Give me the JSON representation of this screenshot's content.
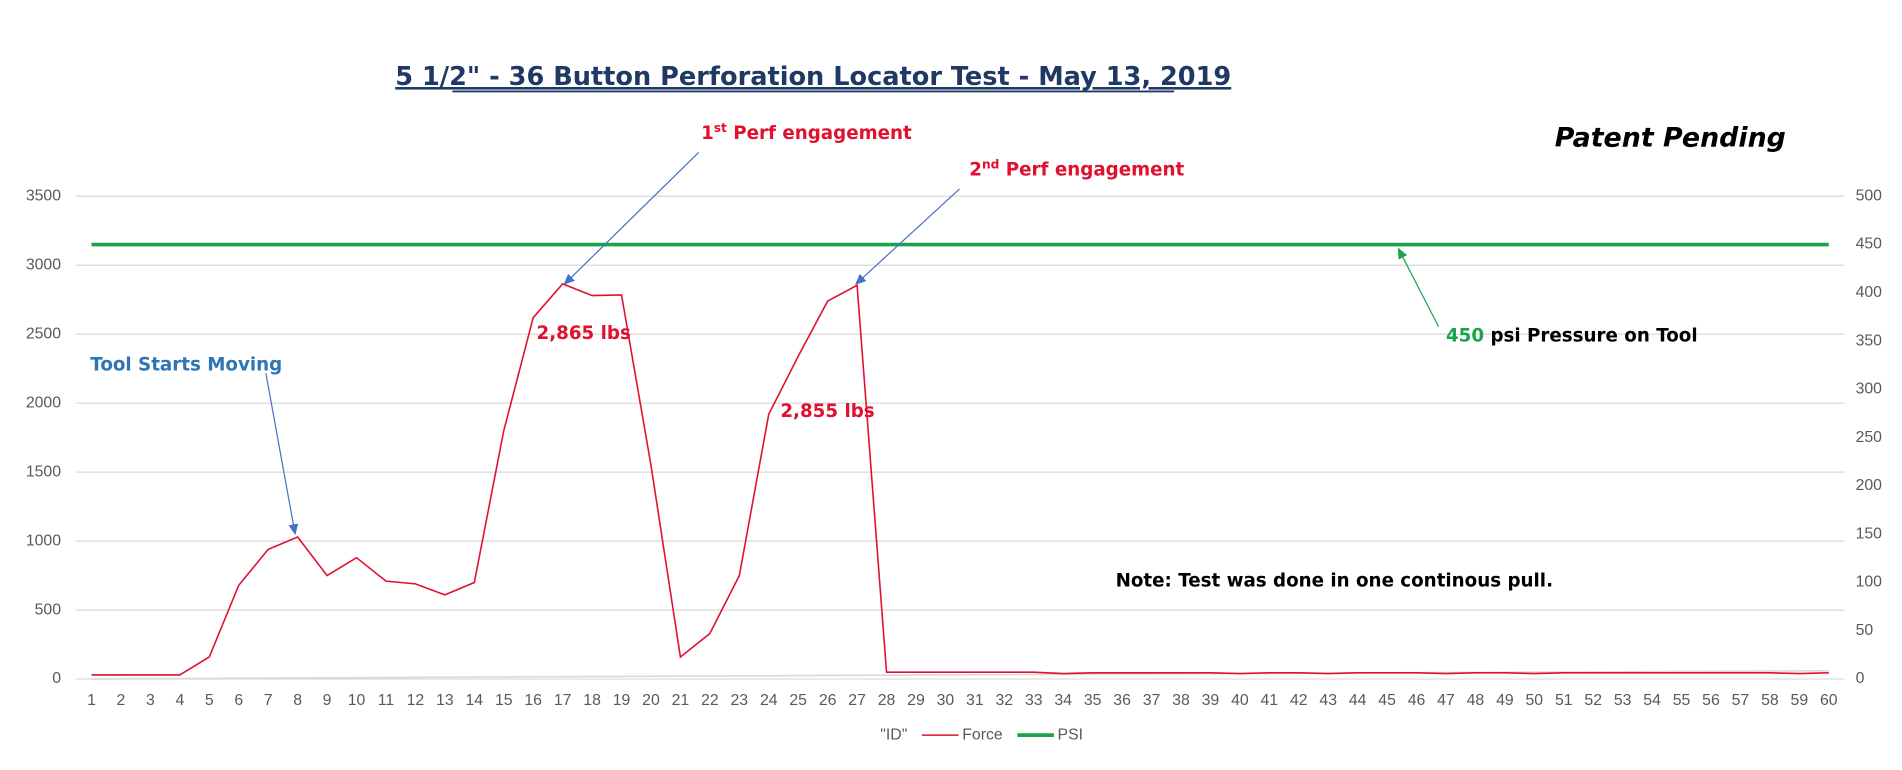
{
  "chart_data": {
    "type": "line",
    "title": "5 1/2\" - 36 Button Perforation Locator Test  - May 13, 2019",
    "subtitle": "Patent Pending",
    "categories": [
      1,
      2,
      3,
      4,
      5,
      6,
      7,
      8,
      9,
      10,
      11,
      12,
      13,
      14,
      15,
      16,
      17,
      18,
      19,
      20,
      21,
      22,
      23,
      24,
      25,
      26,
      27,
      28,
      29,
      30,
      31,
      32,
      33,
      34,
      35,
      36,
      37,
      38,
      39,
      40,
      41,
      42,
      43,
      44,
      45,
      46,
      47,
      48,
      49,
      50,
      51,
      52,
      53,
      54,
      55,
      56,
      57,
      58,
      59,
      60
    ],
    "series": [
      {
        "name": "\"ID\"",
        "color": "#d9d9d9",
        "values": [
          1,
          2,
          3,
          4,
          5,
          6,
          7,
          8,
          9,
          10,
          11,
          12,
          13,
          14,
          15,
          16,
          17,
          18,
          19,
          20,
          21,
          22,
          23,
          24,
          25,
          26,
          27,
          28,
          29,
          30,
          31,
          32,
          33,
          34,
          35,
          36,
          37,
          38,
          39,
          40,
          41,
          42,
          43,
          44,
          45,
          46,
          47,
          48,
          49,
          50,
          51,
          52,
          53,
          54,
          55,
          56,
          57,
          58,
          59,
          60
        ]
      },
      {
        "name": "Force",
        "color": "#e0102f",
        "values": [
          30,
          30,
          30,
          30,
          160,
          680,
          940,
          1030,
          750,
          880,
          710,
          690,
          610,
          700,
          1800,
          2620,
          2865,
          2780,
          2785,
          1550,
          160,
          330,
          750,
          1920,
          2340,
          2740,
          2855,
          50,
          50,
          50,
          50,
          50,
          50,
          40,
          45,
          45,
          45,
          45,
          45,
          40,
          45,
          45,
          40,
          45,
          45,
          45,
          40,
          45,
          45,
          40,
          45,
          45,
          45,
          45,
          45,
          45,
          45,
          45,
          40,
          45
        ]
      },
      {
        "name": "PSI",
        "color": "#1aa34a",
        "axis": "y2",
        "values": [
          450,
          450,
          450,
          450,
          450,
          450,
          450,
          450,
          450,
          450,
          450,
          450,
          450,
          450,
          450,
          450,
          450,
          450,
          450,
          450,
          450,
          450,
          450,
          450,
          450,
          450,
          450,
          450,
          450,
          450,
          450,
          450,
          450,
          450,
          450,
          450,
          450,
          450,
          450,
          450,
          450,
          450,
          450,
          450,
          450,
          450,
          450,
          450,
          450,
          450,
          450,
          450,
          450,
          450,
          450,
          450,
          450,
          450,
          450,
          450
        ]
      }
    ],
    "ylim": [
      0,
      3500
    ],
    "yticks": [
      0,
      500,
      1000,
      1500,
      2000,
      2500,
      3000,
      3500
    ],
    "y2lim": [
      0,
      500
    ],
    "y2ticks": [
      0,
      50,
      100,
      150,
      200,
      250,
      300,
      350,
      400,
      450,
      500
    ],
    "grid": true,
    "legend": "bottom",
    "annotations": {
      "perf1": {
        "num": "1",
        "sup": "st",
        "text": " Perf engagement"
      },
      "perf2": {
        "num": "2",
        "sup": "nd",
        "text": " Perf engagement"
      },
      "force1": "2,865 lbs",
      "force2": "2,855 lbs",
      "start": "Tool Starts Moving",
      "psi_value": "450",
      "psi_text": " psi Pressure on Tool",
      "note": "Note: Test was done in one continous pull."
    }
  }
}
